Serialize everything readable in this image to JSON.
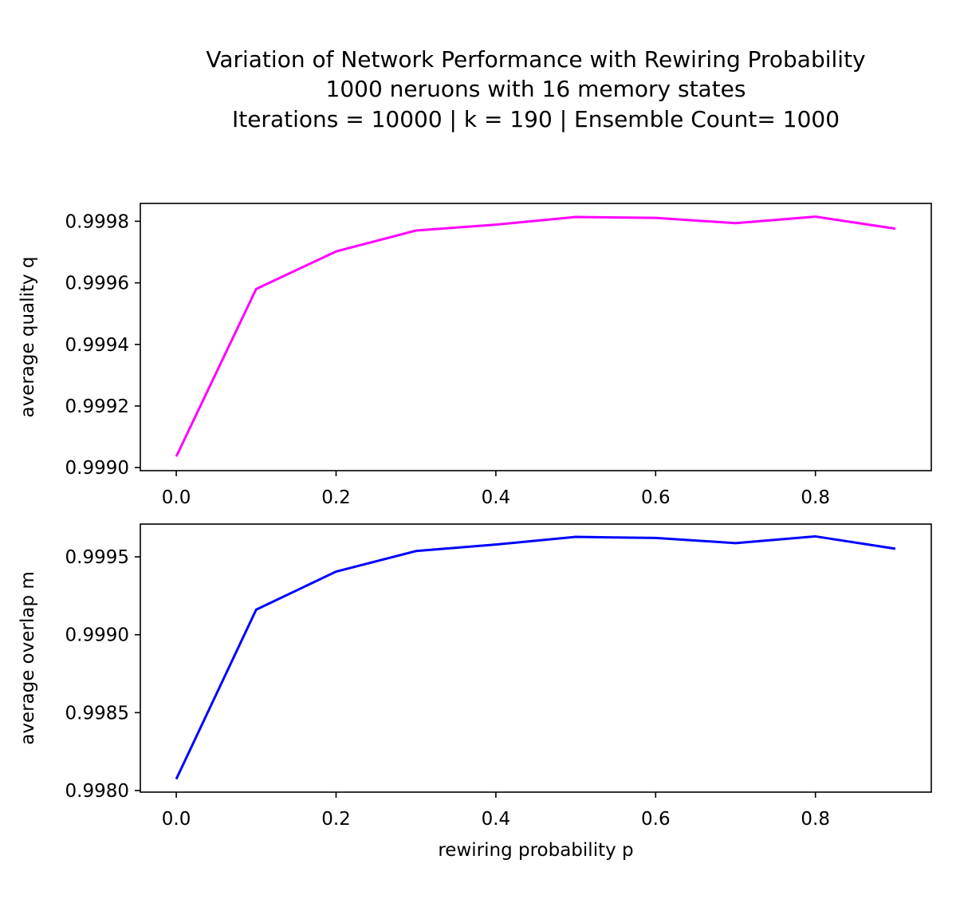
{
  "figure": {
    "title_lines": [
      "Variation of Network Performance with Rewiring Probability",
      "1000 neruons with 16 memory states",
      "Iterations = 10000 |  k = 190 | Ensemble Count= 1000"
    ]
  },
  "chart_data": [
    {
      "type": "line",
      "title": "",
      "xlabel": "",
      "ylabel": "average quality q",
      "xlim": [
        -0.045,
        0.945
      ],
      "ylim": [
        0.99899,
        0.999858
      ],
      "xticks": [
        0.0,
        0.2,
        0.4,
        0.6,
        0.8
      ],
      "xtick_labels": [
        "0.0",
        "0.2",
        "0.4",
        "0.6",
        "0.8"
      ],
      "yticks": [
        0.999,
        0.9992,
        0.9994,
        0.9996,
        0.9998
      ],
      "ytick_labels": [
        "0.9990",
        "0.9992",
        "0.9994",
        "0.9996",
        "0.9998"
      ],
      "grid": false,
      "series": [
        {
          "color": "#ff00ff",
          "x": [
            0.0,
            0.1,
            0.2,
            0.3,
            0.4,
            0.5,
            0.6,
            0.7,
            0.8,
            0.9
          ],
          "y": [
            0.999036,
            0.99958,
            0.999702,
            0.99977,
            0.999789,
            0.999814,
            0.999811,
            0.999794,
            0.999815,
            0.999776
          ]
        }
      ]
    },
    {
      "type": "line",
      "title": "",
      "xlabel": "rewiring probability p",
      "ylabel": "average overlap m",
      "xlim": [
        -0.045,
        0.945
      ],
      "ylim": [
        0.99799,
        0.99971
      ],
      "xticks": [
        0.0,
        0.2,
        0.4,
        0.6,
        0.8
      ],
      "xtick_labels": [
        "0.0",
        "0.2",
        "0.4",
        "0.6",
        "0.8"
      ],
      "yticks": [
        0.998,
        0.9985,
        0.999,
        0.9995
      ],
      "ytick_labels": [
        "0.9980",
        "0.9985",
        "0.9990",
        "0.9995"
      ],
      "grid": false,
      "series": [
        {
          "color": "#0000ff",
          "x": [
            0.0,
            0.1,
            0.2,
            0.3,
            0.4,
            0.5,
            0.6,
            0.7,
            0.8,
            0.9
          ],
          "y": [
            0.998074,
            0.999161,
            0.999405,
            0.999537,
            0.999579,
            0.999628,
            0.999621,
            0.999588,
            0.999631,
            0.999552
          ]
        }
      ]
    }
  ]
}
